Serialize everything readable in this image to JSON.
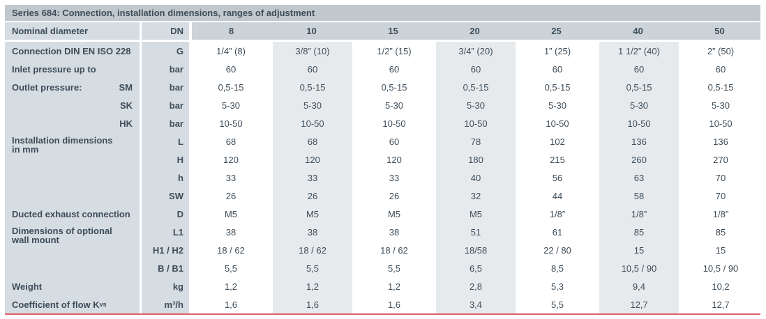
{
  "title": "Series 684: Connection, installation dimensions, ranges of adjustment",
  "header": {
    "label": "Nominal diameter",
    "unit": "DN",
    "columns": [
      "8",
      "10",
      "15",
      "20",
      "25",
      "40",
      "50"
    ]
  },
  "rows": [
    {
      "label": "Connection DIN EN ISO 228",
      "unit": "G",
      "values": [
        "1/4” (8)",
        "3/8” (10)",
        "1/2” (15)",
        "3/4” (20)",
        "1” (25)",
        "1 1/2” (40)",
        "2” (50)"
      ]
    },
    {
      "label": "Inlet pressure up to",
      "unit": "bar",
      "values": [
        "60",
        "60",
        "60",
        "60",
        "60",
        "60",
        "60"
      ]
    },
    {
      "label": "Outlet pressure:",
      "sub": "SM",
      "unit": "bar",
      "values": [
        "0,5-15",
        "0,5-15",
        "0,5-15",
        "0,5-15",
        "0,5-15",
        "0,5-15",
        "0,5-15"
      ]
    },
    {
      "label": "",
      "sub": "SK",
      "unit": "bar",
      "values": [
        "5-30",
        "5-30",
        "5-30",
        "5-30",
        "5-30",
        "5-30",
        "5-30"
      ]
    },
    {
      "label": "",
      "sub": "HK",
      "unit": "bar",
      "values": [
        "10-50",
        "10-50",
        "10-50",
        "10-50",
        "10-50",
        "10-50",
        "10-50"
      ]
    },
    {
      "label": "Installation dimensions\nin mm",
      "unit": "L",
      "values": [
        "68",
        "68",
        "60",
        "78",
        "102",
        "136",
        "136"
      ]
    },
    {
      "label": "",
      "unit": "H",
      "values": [
        "120",
        "120",
        "120",
        "180",
        "215",
        "260",
        "270"
      ]
    },
    {
      "label": "",
      "unit": "h",
      "values": [
        "33",
        "33",
        "33",
        "40",
        "56",
        "63",
        "70"
      ]
    },
    {
      "label": "",
      "unit": "SW",
      "values": [
        "26",
        "26",
        "26",
        "32",
        "44",
        "58",
        "70"
      ]
    },
    {
      "label": "Ducted exhaust connection",
      "unit": "D",
      "values": [
        "M5",
        "M5",
        "M5",
        "M5",
        "1/8”",
        "1/8”",
        "1/8”"
      ]
    },
    {
      "label": "Dimensions of optional\nwall mount",
      "unit": "L1",
      "values": [
        "38",
        "38",
        "38",
        "51",
        "61",
        "85",
        "85"
      ]
    },
    {
      "label": "",
      "unit": "H1 / H2",
      "values": [
        "18 / 62",
        "18 / 62",
        "18 / 62",
        "18/58",
        "22 / 80",
        "15",
        "15"
      ]
    },
    {
      "label": "",
      "unit": "B / B1",
      "values": [
        "5,5",
        "5,5",
        "5,5",
        "6,5",
        "8,5",
        "10,5 / 90",
        "10,5 / 90"
      ]
    },
    {
      "label": "Weight",
      "unit": "kg",
      "values": [
        "1,2",
        "1,2",
        "1,2",
        "2,8",
        "5,3",
        "9,4",
        "10,2"
      ]
    },
    {
      "label": "Coefficient of flow K",
      "label_sub": "vs",
      "unit": "m³/h",
      "values": [
        "1,6",
        "1,6",
        "1,6",
        "3,4",
        "5,5",
        "12,7",
        "12,7"
      ]
    }
  ],
  "style": {
    "title_band_color": "#c0c8ce",
    "label_band_color": "#d5dce2",
    "header_band_color": "#cbd3d9",
    "shaded_column_color": "#e6eaed",
    "text_color": "#3e4d59",
    "bottom_rule_color": "#de5e6c",
    "shaded_column_indices": [
      1,
      3,
      5
    ]
  }
}
